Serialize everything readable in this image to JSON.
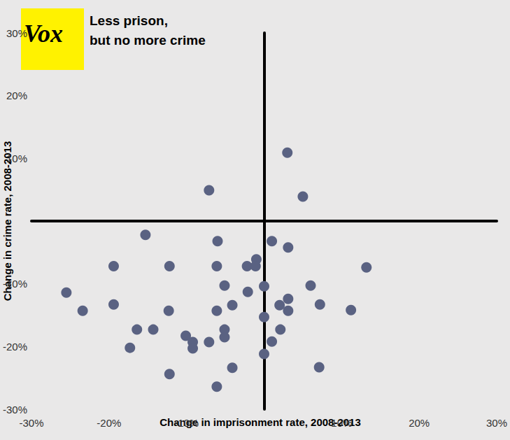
{
  "chart_data": {
    "type": "scatter",
    "logo": "Vox",
    "title": "Less prison,\nbut no more crime",
    "x_label": "Change in imprisonment rate, 2008-2013",
    "y_label": "Change in crime rate, 2008-2013",
    "x": [
      3.0,
      -7.1,
      5.0,
      -15.3,
      -6.0,
      1.0,
      3.1,
      -1.0,
      -2.2,
      -1.1,
      -19.4,
      -12.2,
      -6.1,
      13.2,
      -5.1,
      0.0,
      6.0,
      -2.1,
      -25.5,
      3.1,
      -4.1,
      2.0,
      7.2,
      -19.4,
      -23.4,
      -12.3,
      -6.1,
      3.1,
      11.2,
      0.0,
      -16.4,
      -14.3,
      -5.1,
      2.1,
      -10.1,
      -5.1,
      -9.2,
      -7.1,
      1.0,
      -17.3,
      -9.2,
      0.0,
      -4.1,
      7.1,
      -12.2,
      -6.1
    ],
    "values": [
      10.9,
      4.9,
      3.9,
      -2.2,
      -3.2,
      -3.2,
      -4.2,
      -6.1,
      -7.2,
      -7.2,
      -7.2,
      -7.2,
      -7.2,
      -7.4,
      -10.3,
      -10.4,
      -10.3,
      -11.3,
      -11.4,
      -12.4,
      -13.4,
      -13.4,
      -13.3,
      -13.3,
      -14.3,
      -14.3,
      -14.3,
      -14.3,
      -14.2,
      -15.3,
      -17.3,
      -17.3,
      -17.3,
      -17.3,
      -18.3,
      -18.5,
      -19.3,
      -19.3,
      -19.2,
      -20.2,
      -20.3,
      -21.2,
      -23.4,
      -23.3,
      -24.4,
      -26.4
    ],
    "color": "#5a6282",
    "marker": "circle",
    "xlim": [
      -30,
      30
    ],
    "ylim": [
      -30,
      30
    ],
    "xticks": [
      {
        "value": -30,
        "label": "-30%"
      },
      {
        "value": -20,
        "label": "-20%"
      },
      {
        "value": -10,
        "label": "-10%"
      },
      {
        "value": 10,
        "label": "10%"
      },
      {
        "value": 20,
        "label": "20%"
      },
      {
        "value": 30,
        "label": "30%"
      }
    ],
    "yticks": [
      {
        "value": -30,
        "label": "-30%"
      },
      {
        "value": -20,
        "label": "-20%"
      },
      {
        "value": -10,
        "label": "-10%"
      },
      {
        "value": 10,
        "label": "10%"
      },
      {
        "value": 20,
        "label": "20%"
      },
      {
        "value": 30,
        "label": "30%"
      }
    ],
    "grid": false
  }
}
